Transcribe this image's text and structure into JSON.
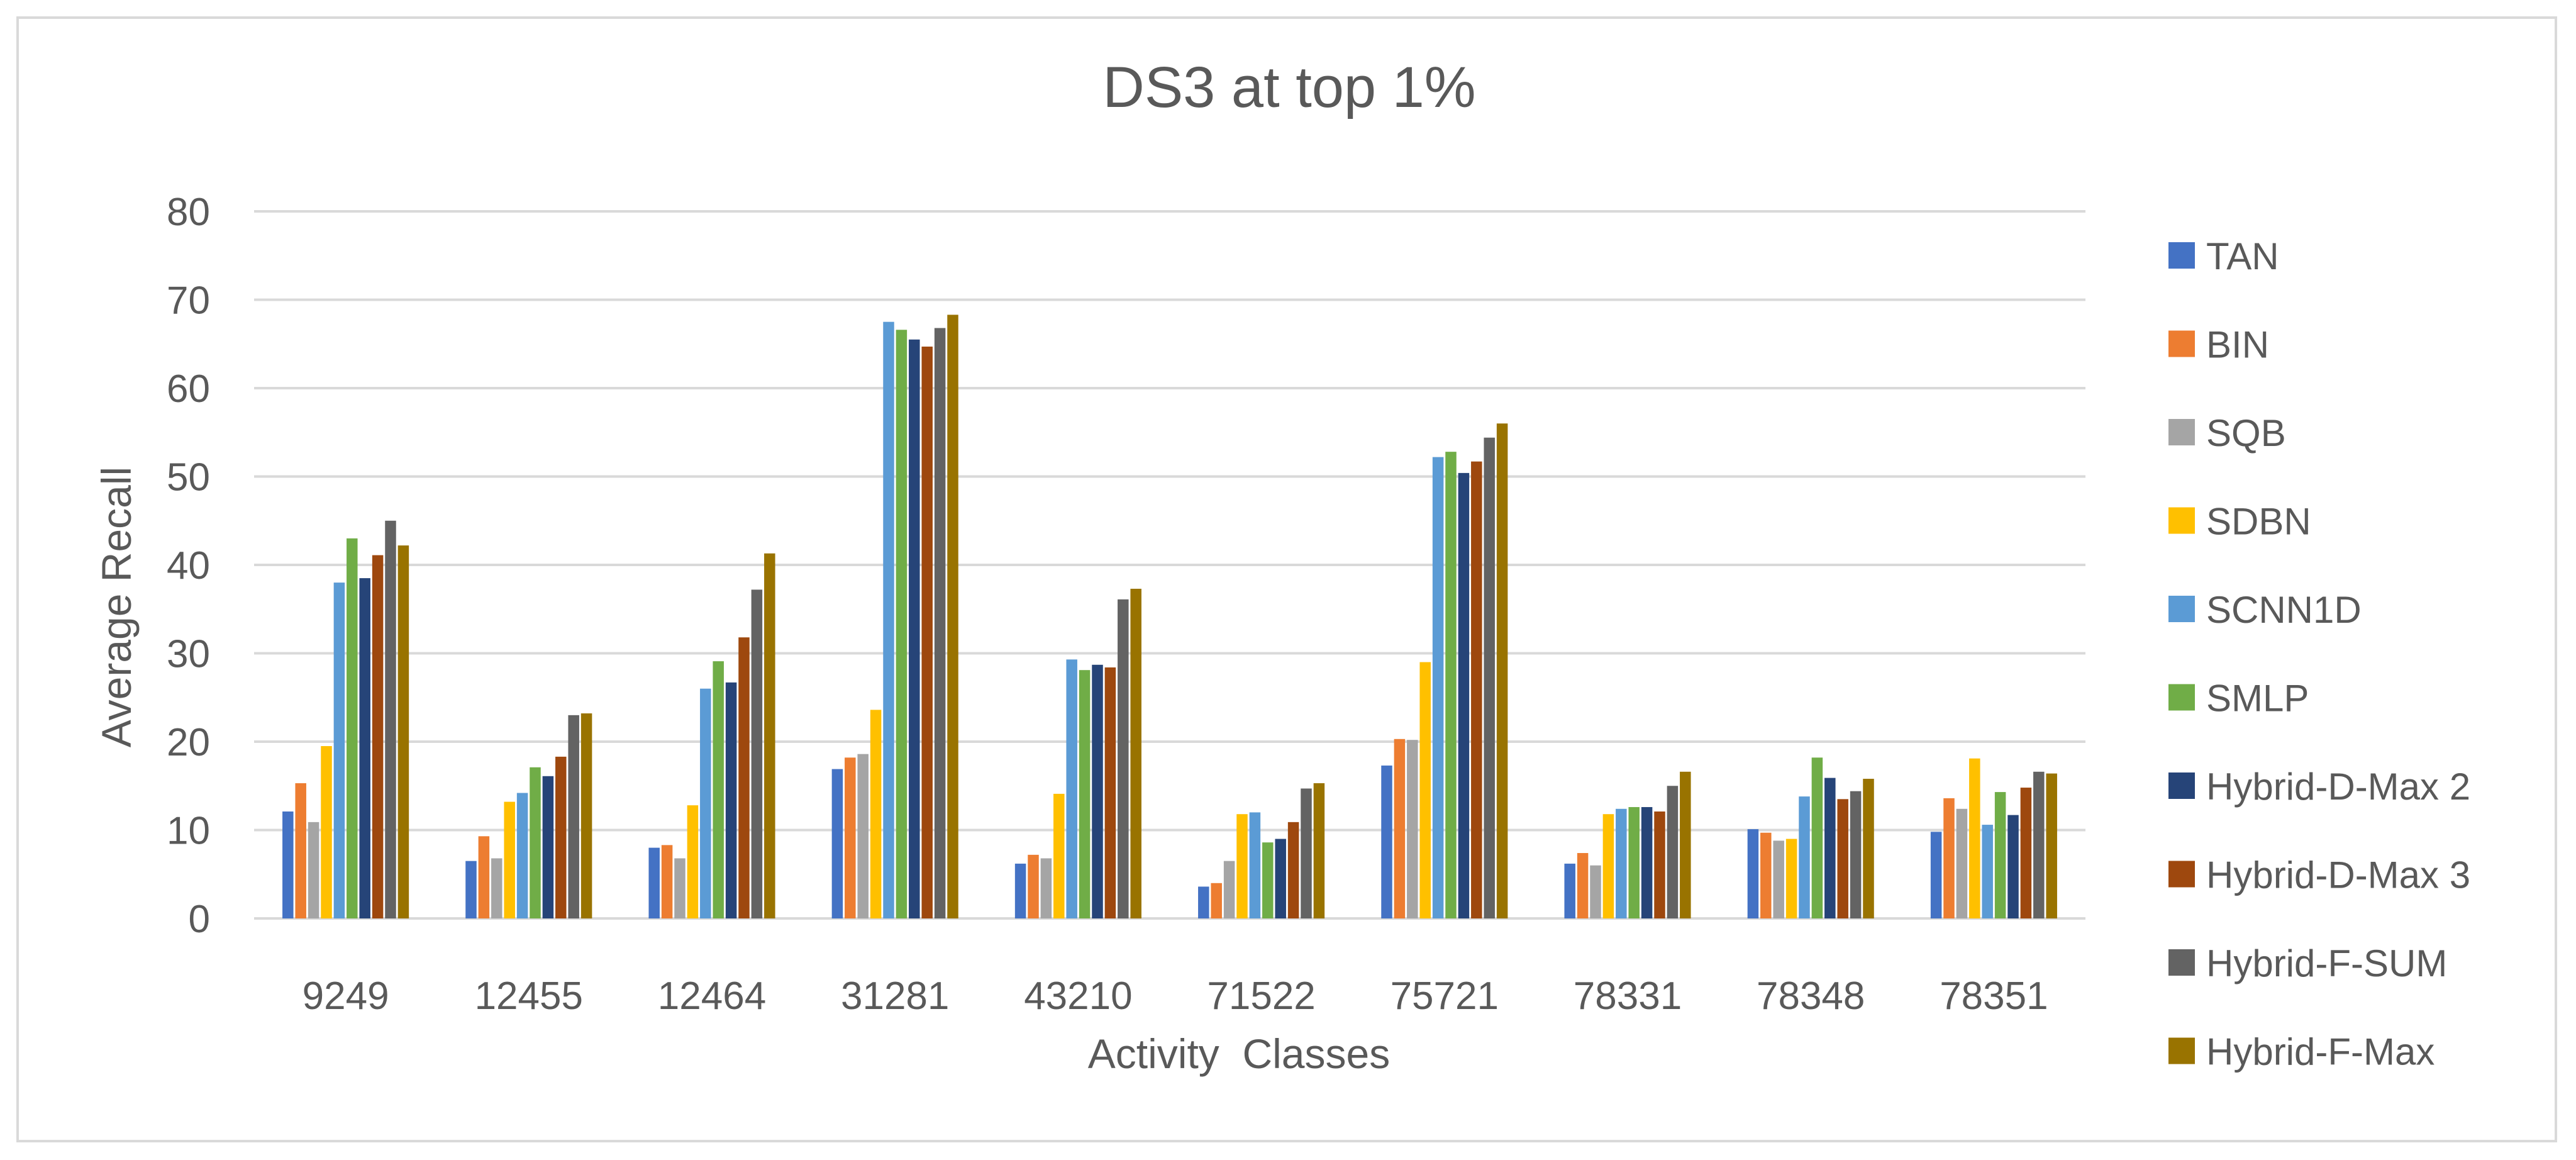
{
  "chart_data": {
    "type": "bar",
    "title": "DS3 at top 1%",
    "xlabel": "Activity  Classes",
    "ylabel": "Average Recall",
    "ylim": [
      0,
      80
    ],
    "yticks": [
      0,
      10,
      20,
      30,
      40,
      50,
      60,
      70,
      80
    ],
    "grid": true,
    "legend_position": "right",
    "categories": [
      "9249",
      "12455",
      "12464",
      "31281",
      "43210",
      "71522",
      "75721",
      "78331",
      "78348",
      "78351"
    ],
    "series": [
      {
        "name": "TAN",
        "color": "#4472c4",
        "values": [
          12.1,
          6.5,
          8.0,
          16.9,
          6.2,
          3.6,
          17.3,
          6.2,
          10.1,
          9.8
        ]
      },
      {
        "name": "BIN",
        "color": "#ed7d31",
        "values": [
          15.3,
          9.3,
          8.3,
          18.2,
          7.2,
          4.0,
          20.3,
          7.4,
          9.7,
          13.6
        ]
      },
      {
        "name": "SQB",
        "color": "#a5a5a5",
        "values": [
          10.9,
          6.8,
          6.8,
          18.6,
          6.8,
          6.5,
          20.2,
          6.0,
          8.8,
          12.4
        ]
      },
      {
        "name": "SDBN",
        "color": "#ffc000",
        "values": [
          19.5,
          13.2,
          12.8,
          23.6,
          14.1,
          11.8,
          29.0,
          11.8,
          9.0,
          18.1
        ]
      },
      {
        "name": "SCNN1D",
        "color": "#5b9bd5",
        "values": [
          38.0,
          14.2,
          26.0,
          67.5,
          29.3,
          12.0,
          52.2,
          12.4,
          13.8,
          10.6
        ]
      },
      {
        "name": "SMLP",
        "color": "#70ad47",
        "values": [
          43.0,
          17.1,
          29.1,
          66.6,
          28.1,
          8.6,
          52.8,
          12.6,
          18.2,
          14.3
        ]
      },
      {
        "name": "Hybrid-D-Max 2",
        "color": "#264478",
        "values": [
          38.5,
          16.1,
          26.7,
          65.5,
          28.7,
          9.0,
          50.4,
          12.6,
          15.9,
          11.7
        ]
      },
      {
        "name": "Hybrid-D-Max 3",
        "color": "#9e480e",
        "values": [
          41.1,
          18.3,
          31.8,
          64.7,
          28.4,
          10.9,
          51.7,
          12.1,
          13.5,
          14.8
        ]
      },
      {
        "name": "Hybrid-F-SUM",
        "color": "#636363",
        "values": [
          45.0,
          23.0,
          37.2,
          66.8,
          36.1,
          14.7,
          54.4,
          15.0,
          14.4,
          16.6
        ]
      },
      {
        "name": "Hybrid-F-Max",
        "color": "#997300",
        "values": [
          42.2,
          23.2,
          41.3,
          68.3,
          37.3,
          15.3,
          56.0,
          16.6,
          15.8,
          16.4
        ]
      }
    ]
  }
}
